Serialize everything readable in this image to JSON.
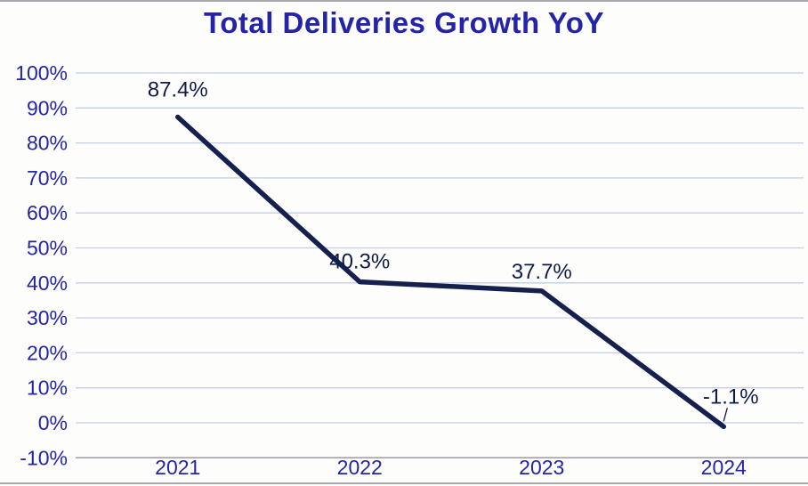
{
  "chart_data": {
    "type": "line",
    "title": "Total Deliveries Growth YoY",
    "categories": [
      "2021",
      "2022",
      "2023",
      "2024"
    ],
    "series": [
      {
        "name": "Total Deliveries Growth YoY",
        "values": [
          87.4,
          40.3,
          37.7,
          -1.1
        ]
      }
    ],
    "data_labels": [
      "87.4%",
      "40.3%",
      "37.7%",
      "-1.1%"
    ],
    "y_ticks": [
      "100%",
      "90%",
      "80%",
      "70%",
      "60%",
      "50%",
      "40%",
      "30%",
      "20%",
      "10%",
      "0%",
      "-10%"
    ],
    "y_tick_values": [
      100,
      90,
      80,
      70,
      60,
      50,
      40,
      30,
      20,
      10,
      0,
      -10
    ],
    "ylim": [
      -10,
      100
    ],
    "xlabel": "",
    "ylabel": "",
    "grid": "horizontal",
    "legend": "none",
    "label_dx": [
      0,
      0,
      0,
      8
    ],
    "label_dy": [
      -31,
      -23,
      -22,
      -34
    ],
    "label_leader": [
      false,
      false,
      false,
      true
    ],
    "colors": {
      "title": "#2424a8",
      "axis_text": "#2424a8",
      "gridline": "#c3cdea",
      "axis_line": "#9b9ba1",
      "line": "#15204e",
      "label_text": "#101c46",
      "background": "#fdfdfc"
    }
  }
}
